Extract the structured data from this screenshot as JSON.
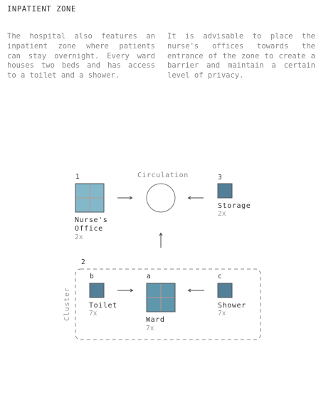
{
  "title": "INPATIENT ZONE",
  "paragraphs": [
    "The hospital also features an inpatient zone where patients can stay overnight. Every ward houses two beds and has access to a toilet and a shower.",
    "It is advisable to place the nurse's offices towards the entrance of the zone to create a barrier and maintain a certain level of privacy."
  ],
  "diagram": {
    "circulation_label": "Circulation",
    "cluster_label": "Cluster",
    "nurses_office": {
      "number": "1",
      "label_line1": "Nurse's",
      "label_line2": "Office",
      "count": "2x"
    },
    "storage": {
      "number": "3",
      "label": "Storage",
      "count": "2x"
    },
    "cluster": {
      "number": "2",
      "toilet": {
        "letter": "b",
        "label": "Toilet",
        "count": "7x"
      },
      "ward": {
        "letter": "a",
        "label": "Ward",
        "count": "7x"
      },
      "shower": {
        "letter": "c",
        "label": "Shower",
        "count": "7x"
      }
    },
    "colors": {
      "nurse_fill": "#82b8ca",
      "ward_fill": "#5f97ad",
      "dark_fill": "#537f98",
      "cross": "#b89a8a",
      "outline": "#555555"
    }
  }
}
